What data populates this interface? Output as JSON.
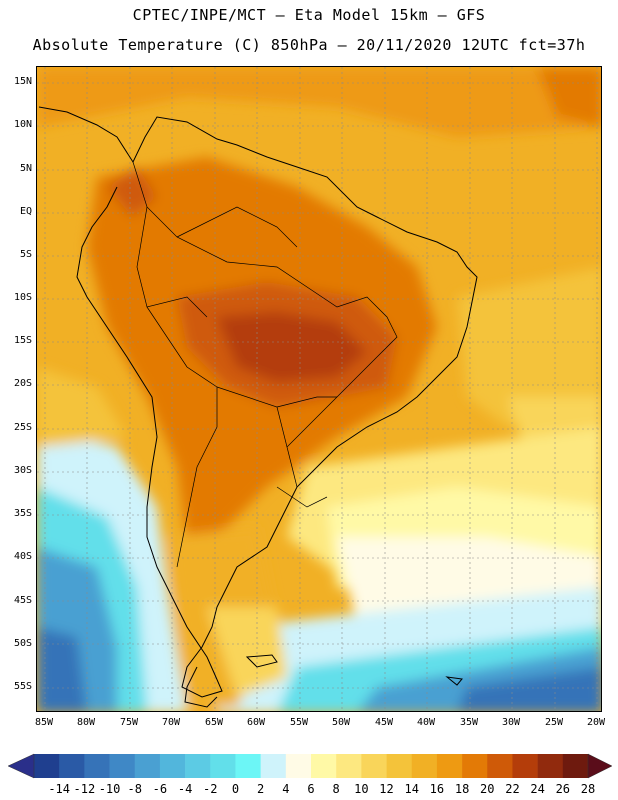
{
  "title_line1": "CPTEC/INPE/MCT –  Eta Model 15km – GFS",
  "title_line2": "Absolute Temperature (C) 850hPa – 20/11/2020 12UTC fct=37h",
  "lat_labels": [
    "15N",
    "10N",
    "5N",
    "EQ",
    "5S",
    "10S",
    "15S",
    "20S",
    "25S",
    "30S",
    "35S",
    "40S",
    "45S",
    "50S",
    "55S"
  ],
  "lon_labels": [
    "85W",
    "80W",
    "75W",
    "70W",
    "65W",
    "60W",
    "55W",
    "50W",
    "45W",
    "40W",
    "35W",
    "30W",
    "25W",
    "20W"
  ],
  "colorbar": {
    "labels": [
      "-14",
      "-12",
      "-10",
      "-8",
      "-6",
      "-4",
      "-2",
      "0",
      "2",
      "4",
      "6",
      "8",
      "10",
      "12",
      "14",
      "16",
      "18",
      "20",
      "22",
      "24",
      "26",
      "28"
    ],
    "colors": [
      "#1f3f8f",
      "#2a5aa6",
      "#3673b8",
      "#3f88c6",
      "#4aa0d2",
      "#52b6dc",
      "#5ccbe4",
      "#62dfea",
      "#6cf6f6",
      "#cff3fb",
      "#fffbe6",
      "#fff9a6",
      "#fde880",
      "#f9d55a",
      "#f4c33a",
      "#f1b025",
      "#ee9a12",
      "#e37a06",
      "#cf5a08",
      "#b43d0a",
      "#912a0d",
      "#6e1a0e"
    ],
    "left_arrow_color": "#2a2f8a",
    "right_arrow_color": "#5a0d1a"
  }
}
